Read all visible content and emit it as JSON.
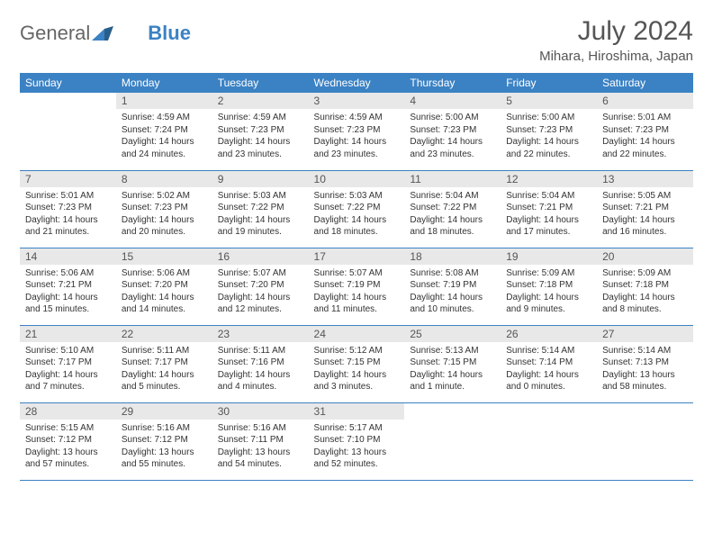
{
  "brand": {
    "part1": "General",
    "part2": "Blue"
  },
  "title": "July 2024",
  "location": "Mihara, Hiroshima, Japan",
  "colors": {
    "header_bg": "#3b82c4",
    "header_text": "#ffffff",
    "daynum_bg": "#e8e8e8",
    "text": "#333333",
    "border": "#3b82c4",
    "background": "#ffffff"
  },
  "typography": {
    "title_fontsize": 30,
    "location_fontsize": 15,
    "dayheader_fontsize": 12,
    "body_fontsize": 10
  },
  "day_headers": [
    "Sunday",
    "Monday",
    "Tuesday",
    "Wednesday",
    "Thursday",
    "Friday",
    "Saturday"
  ],
  "weeks": [
    [
      null,
      {
        "n": "1",
        "sunrise": "4:59 AM",
        "sunset": "7:24 PM",
        "daylight": "14 hours and 24 minutes."
      },
      {
        "n": "2",
        "sunrise": "4:59 AM",
        "sunset": "7:23 PM",
        "daylight": "14 hours and 23 minutes."
      },
      {
        "n": "3",
        "sunrise": "4:59 AM",
        "sunset": "7:23 PM",
        "daylight": "14 hours and 23 minutes."
      },
      {
        "n": "4",
        "sunrise": "5:00 AM",
        "sunset": "7:23 PM",
        "daylight": "14 hours and 23 minutes."
      },
      {
        "n": "5",
        "sunrise": "5:00 AM",
        "sunset": "7:23 PM",
        "daylight": "14 hours and 22 minutes."
      },
      {
        "n": "6",
        "sunrise": "5:01 AM",
        "sunset": "7:23 PM",
        "daylight": "14 hours and 22 minutes."
      }
    ],
    [
      {
        "n": "7",
        "sunrise": "5:01 AM",
        "sunset": "7:23 PM",
        "daylight": "14 hours and 21 minutes."
      },
      {
        "n": "8",
        "sunrise": "5:02 AM",
        "sunset": "7:23 PM",
        "daylight": "14 hours and 20 minutes."
      },
      {
        "n": "9",
        "sunrise": "5:03 AM",
        "sunset": "7:22 PM",
        "daylight": "14 hours and 19 minutes."
      },
      {
        "n": "10",
        "sunrise": "5:03 AM",
        "sunset": "7:22 PM",
        "daylight": "14 hours and 18 minutes."
      },
      {
        "n": "11",
        "sunrise": "5:04 AM",
        "sunset": "7:22 PM",
        "daylight": "14 hours and 18 minutes."
      },
      {
        "n": "12",
        "sunrise": "5:04 AM",
        "sunset": "7:21 PM",
        "daylight": "14 hours and 17 minutes."
      },
      {
        "n": "13",
        "sunrise": "5:05 AM",
        "sunset": "7:21 PM",
        "daylight": "14 hours and 16 minutes."
      }
    ],
    [
      {
        "n": "14",
        "sunrise": "5:06 AM",
        "sunset": "7:21 PM",
        "daylight": "14 hours and 15 minutes."
      },
      {
        "n": "15",
        "sunrise": "5:06 AM",
        "sunset": "7:20 PM",
        "daylight": "14 hours and 14 minutes."
      },
      {
        "n": "16",
        "sunrise": "5:07 AM",
        "sunset": "7:20 PM",
        "daylight": "14 hours and 12 minutes."
      },
      {
        "n": "17",
        "sunrise": "5:07 AM",
        "sunset": "7:19 PM",
        "daylight": "14 hours and 11 minutes."
      },
      {
        "n": "18",
        "sunrise": "5:08 AM",
        "sunset": "7:19 PM",
        "daylight": "14 hours and 10 minutes."
      },
      {
        "n": "19",
        "sunrise": "5:09 AM",
        "sunset": "7:18 PM",
        "daylight": "14 hours and 9 minutes."
      },
      {
        "n": "20",
        "sunrise": "5:09 AM",
        "sunset": "7:18 PM",
        "daylight": "14 hours and 8 minutes."
      }
    ],
    [
      {
        "n": "21",
        "sunrise": "5:10 AM",
        "sunset": "7:17 PM",
        "daylight": "14 hours and 7 minutes."
      },
      {
        "n": "22",
        "sunrise": "5:11 AM",
        "sunset": "7:17 PM",
        "daylight": "14 hours and 5 minutes."
      },
      {
        "n": "23",
        "sunrise": "5:11 AM",
        "sunset": "7:16 PM",
        "daylight": "14 hours and 4 minutes."
      },
      {
        "n": "24",
        "sunrise": "5:12 AM",
        "sunset": "7:15 PM",
        "daylight": "14 hours and 3 minutes."
      },
      {
        "n": "25",
        "sunrise": "5:13 AM",
        "sunset": "7:15 PM",
        "daylight": "14 hours and 1 minute."
      },
      {
        "n": "26",
        "sunrise": "5:14 AM",
        "sunset": "7:14 PM",
        "daylight": "14 hours and 0 minutes."
      },
      {
        "n": "27",
        "sunrise": "5:14 AM",
        "sunset": "7:13 PM",
        "daylight": "13 hours and 58 minutes."
      }
    ],
    [
      {
        "n": "28",
        "sunrise": "5:15 AM",
        "sunset": "7:12 PM",
        "daylight": "13 hours and 57 minutes."
      },
      {
        "n": "29",
        "sunrise": "5:16 AM",
        "sunset": "7:12 PM",
        "daylight": "13 hours and 55 minutes."
      },
      {
        "n": "30",
        "sunrise": "5:16 AM",
        "sunset": "7:11 PM",
        "daylight": "13 hours and 54 minutes."
      },
      {
        "n": "31",
        "sunrise": "5:17 AM",
        "sunset": "7:10 PM",
        "daylight": "13 hours and 52 minutes."
      },
      null,
      null,
      null
    ]
  ],
  "labels": {
    "sunrise": "Sunrise:",
    "sunset": "Sunset:",
    "daylight": "Daylight:"
  }
}
